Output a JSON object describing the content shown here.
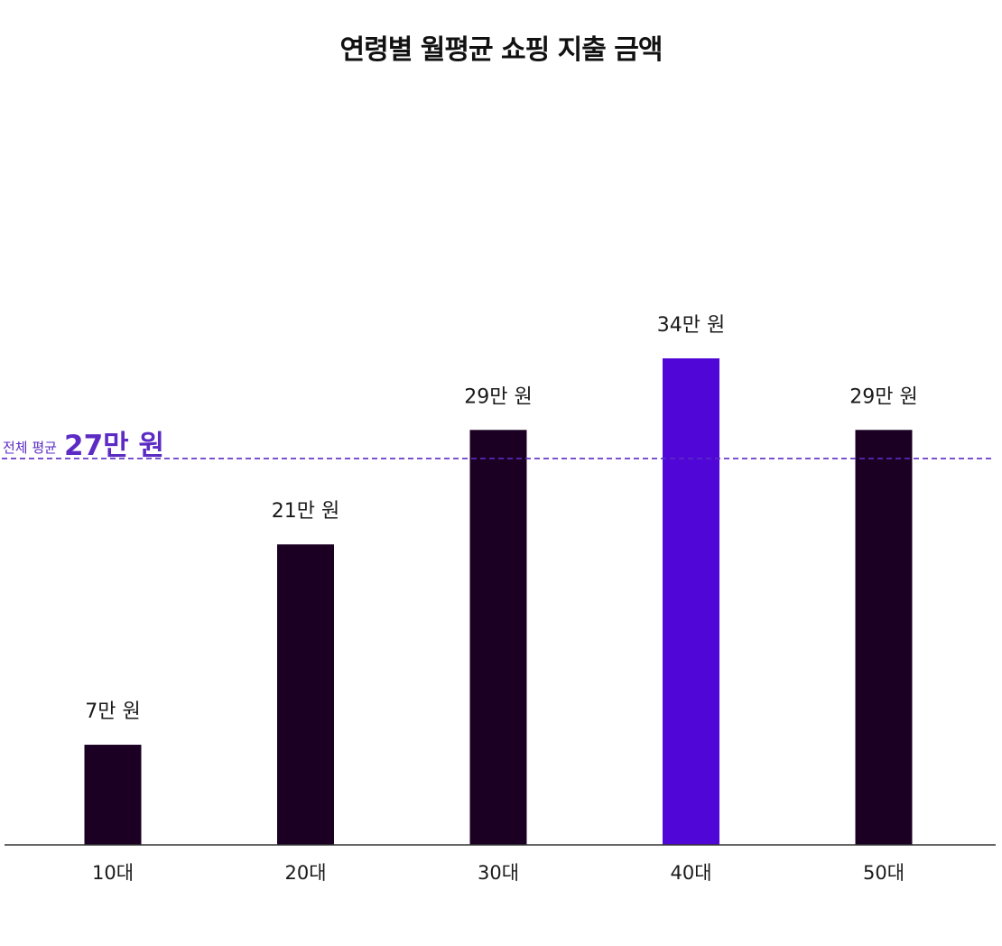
{
  "chart_data": {
    "type": "bar",
    "title": "연령별 월평균 쇼핑 지출 금액",
    "categories": [
      "10대",
      "20대",
      "30대",
      "40대",
      "50대"
    ],
    "series": [
      {
        "values": [
          7,
          21,
          29,
          34,
          29
        ]
      }
    ],
    "value_labels": [
      "7만 원",
      "21만 원",
      "29만 원",
      "34만 원",
      "29만 원"
    ],
    "unit": "만 원",
    "highlight_index": 3,
    "ylim": [
      0,
      34
    ],
    "grid": false,
    "legend": "none",
    "reference_line": {
      "value": 27,
      "prefix": "전체 평균",
      "label": "27만 원",
      "style": "dashed"
    },
    "colors": {
      "bar": "#1c0024",
      "highlight": "#5006d6",
      "reference": "#5b2bc4",
      "axis": "#333333"
    }
  }
}
